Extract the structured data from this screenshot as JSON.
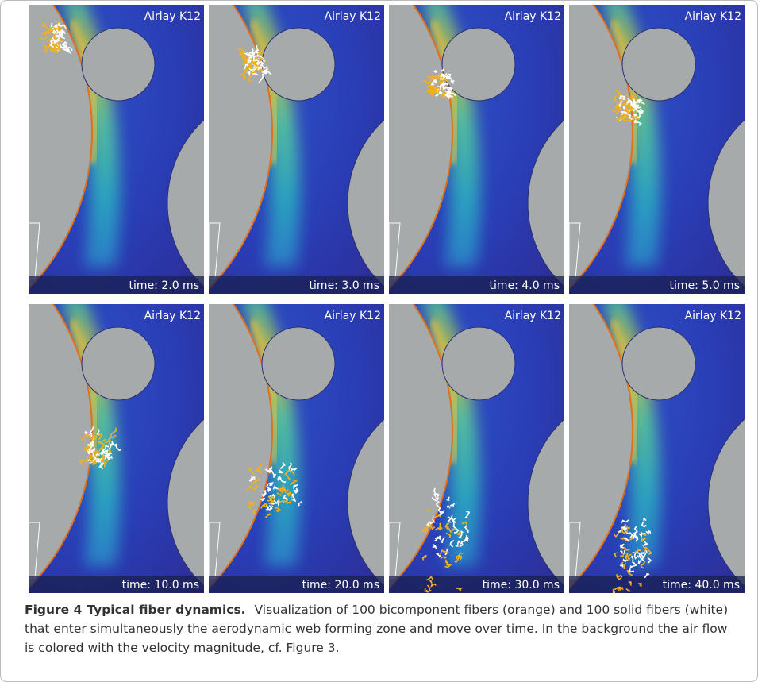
{
  "panels": [
    {
      "label": "Airlay K12",
      "time": "time: 2.0 ms"
    },
    {
      "label": "Airlay K12",
      "time": "time: 3.0 ms"
    },
    {
      "label": "Airlay K12",
      "time": "time: 4.0 ms"
    },
    {
      "label": "Airlay K12",
      "time": "time: 5.0 ms"
    },
    {
      "label": "Airlay K12",
      "time": "time: 10.0 ms"
    },
    {
      "label": "Airlay K12",
      "time": "time: 20.0 ms"
    },
    {
      "label": "Airlay K12",
      "time": "time: 30.0 ms"
    },
    {
      "label": "Airlay K12",
      "time": "time: 40.0 ms"
    }
  ],
  "caption": {
    "label": "Figure 4",
    "title": "Typical fiber dynamics.",
    "text": "Visualization of 100 bicomponent fibers (orange) and 100 solid fibers (white) that enter simultaneously the aerodynamic web forming zone and move over time. In the background the air flow is colored with the velocity magnitude, cf. Figure 3."
  }
}
